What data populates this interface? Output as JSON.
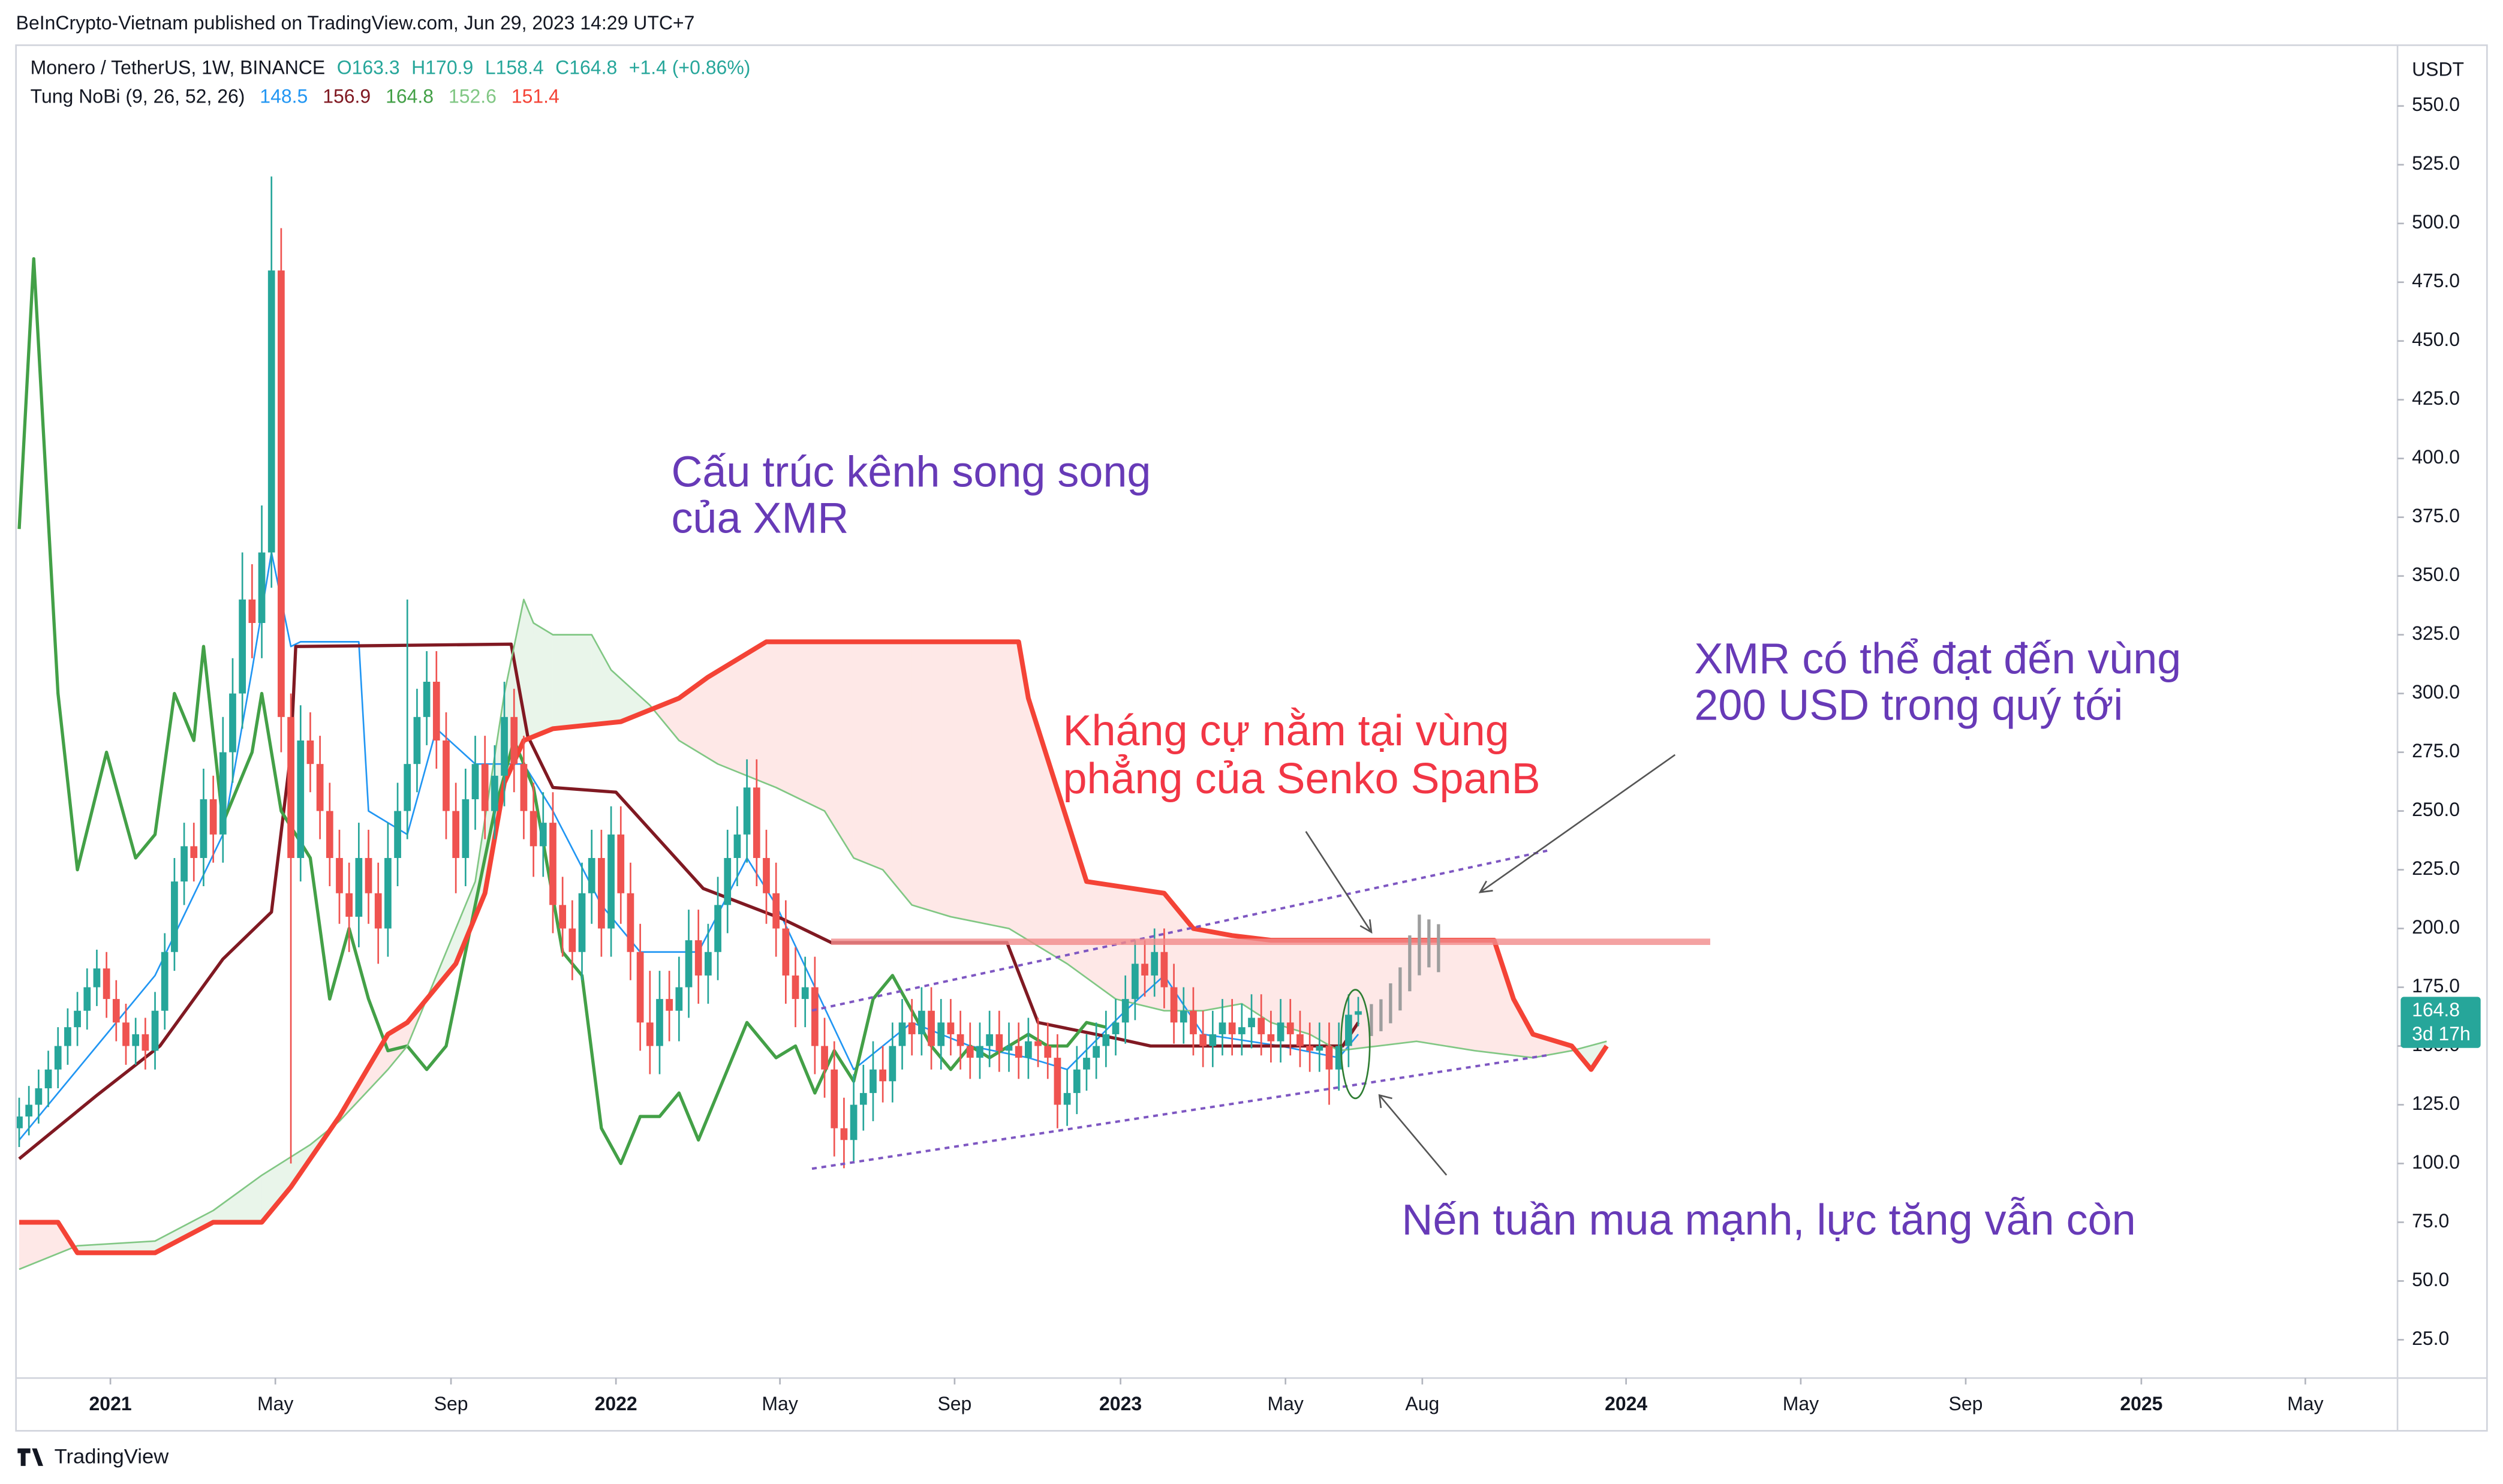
{
  "header": {
    "published": "BeInCrypto-Vietnam published on TradingView.com, Jun 29, 2023 14:29 UTC+7",
    "symbol": "Monero / TetherUS, 1W, BINANCE",
    "open": "O163.3",
    "high": "H170.9",
    "low": "L158.4",
    "close": "C164.8",
    "change": "+1.4 (+0.86%)",
    "indicator": "Tung NoBi (9, 26, 52, 26)",
    "indicator_values": [
      148.5,
      156.9,
      164.8,
      152.6,
      151.4
    ],
    "indicator_colors": [
      "#2196f3",
      "#801922",
      "#43a047",
      "#81c784",
      "#f44336"
    ],
    "footer": "TradingView"
  },
  "chart_data": {
    "type": "candlestick",
    "currency": "USDT",
    "xlim": [
      -0.33,
      245.1
    ],
    "ylim": [
      8.7,
      574.5
    ],
    "xticks": [
      {
        "value": 9.4,
        "label": "2021"
      },
      {
        "value": 26.4,
        "label": "May"
      },
      {
        "value": 44.5,
        "label": "Sep"
      },
      {
        "value": 61.5,
        "label": "2022"
      },
      {
        "value": 78.4,
        "label": "May"
      },
      {
        "value": 96.4,
        "label": "Sep"
      },
      {
        "value": 113.5,
        "label": "2023"
      },
      {
        "value": 130.5,
        "label": "May"
      },
      {
        "value": 144.6,
        "label": "Aug"
      },
      {
        "value": 165.6,
        "label": "2024"
      },
      {
        "value": 183.6,
        "label": "May"
      },
      {
        "value": 200.6,
        "label": "Sep"
      },
      {
        "value": 218.7,
        "label": "2025"
      },
      {
        "value": 235.6,
        "label": "May"
      }
    ],
    "yticks": [
      {
        "value": 25,
        "label": "25.0"
      },
      {
        "value": 50,
        "label": "50.0"
      },
      {
        "value": 75,
        "label": "75.0"
      },
      {
        "value": 100,
        "label": "100.0"
      },
      {
        "value": 125,
        "label": "125.0"
      },
      {
        "value": 150,
        "label": "150.0"
      },
      {
        "value": 175,
        "label": "175.0"
      },
      {
        "value": 200,
        "label": "200.0"
      },
      {
        "value": 225,
        "label": "225.0"
      },
      {
        "value": 250,
        "label": "250.0"
      },
      {
        "value": 275,
        "label": "275.0"
      },
      {
        "value": 300,
        "label": "300.0"
      },
      {
        "value": 325,
        "label": "325.0"
      },
      {
        "value": 350,
        "label": "350.0"
      },
      {
        "value": 375,
        "label": "375.0"
      },
      {
        "value": 400,
        "label": "400.0"
      },
      {
        "value": 425,
        "label": "425.0"
      },
      {
        "value": 450,
        "label": "450.0"
      },
      {
        "value": 475,
        "label": "475.0"
      },
      {
        "value": 500,
        "label": "500.0"
      },
      {
        "value": 525,
        "label": "525.0"
      },
      {
        "value": 550,
        "label": "550.0"
      }
    ],
    "last_price": 164.8,
    "countdown": "3d 17h",
    "last_price_color": "#26a69a",
    "up_color": "#26a69a",
    "down_color": "#ef5350",
    "open": [
      115,
      120,
      125,
      132,
      140,
      150,
      158,
      165,
      175,
      183,
      170,
      160,
      150,
      155,
      148,
      165,
      190,
      220,
      235,
      230,
      255,
      240,
      275,
      300,
      340,
      330,
      360,
      480,
      290,
      230,
      280,
      270,
      250,
      230,
      215,
      205,
      230,
      215,
      200,
      230,
      250,
      270,
      290,
      305,
      280,
      250,
      230,
      255,
      270,
      250,
      265,
      290,
      270,
      250,
      235,
      245,
      210,
      200,
      190,
      215,
      230,
      200,
      240,
      215,
      190,
      160,
      150,
      170,
      165,
      175,
      195,
      180,
      190,
      210,
      230,
      240,
      260,
      230,
      215,
      200,
      180,
      170,
      175,
      150,
      140,
      115,
      110,
      125,
      130,
      140,
      135,
      150,
      160,
      155,
      165,
      150,
      160,
      155,
      150,
      145,
      150,
      155,
      148,
      150,
      145,
      152,
      150,
      145,
      125,
      130,
      140,
      145,
      150,
      155,
      160,
      170,
      185,
      180,
      190,
      175,
      160,
      165,
      155,
      150,
      155,
      160,
      155,
      158,
      162,
      155,
      152,
      160,
      155,
      150,
      148,
      150,
      140,
      150,
      163.3
    ],
    "high": [
      128,
      133,
      140,
      148,
      158,
      166,
      173,
      183,
      191,
      190,
      178,
      168,
      162,
      162,
      173,
      198,
      230,
      245,
      245,
      268,
      265,
      290,
      315,
      360,
      355,
      380,
      520,
      498,
      300,
      295,
      292,
      282,
      262,
      242,
      228,
      245,
      242,
      228,
      245,
      262,
      340,
      302,
      318,
      318,
      292,
      262,
      268,
      282,
      282,
      278,
      305,
      302,
      282,
      262,
      258,
      258,
      222,
      212,
      228,
      242,
      242,
      252,
      252,
      228,
      202,
      182,
      182,
      182,
      188,
      208,
      208,
      202,
      222,
      242,
      252,
      272,
      272,
      242,
      228,
      212,
      192,
      188,
      188,
      162,
      152,
      128,
      138,
      142,
      152,
      150,
      160,
      170,
      170,
      175,
      175,
      170,
      170,
      165,
      160,
      160,
      165,
      165,
      160,
      160,
      162,
      162,
      160,
      155,
      140,
      150,
      155,
      160,
      165,
      170,
      180,
      195,
      195,
      200,
      200,
      185,
      175,
      175,
      165,
      165,
      170,
      170,
      168,
      172,
      172,
      165,
      170,
      170,
      165,
      160,
      160,
      160,
      160,
      172,
      170.9
    ],
    "low": [
      107,
      112,
      117,
      124,
      132,
      142,
      150,
      157,
      167,
      162,
      152,
      142,
      142,
      140,
      140,
      157,
      182,
      210,
      220,
      218,
      228,
      228,
      262,
      285,
      315,
      315,
      345,
      275,
      100,
      220,
      258,
      238,
      218,
      202,
      190,
      192,
      202,
      185,
      188,
      218,
      238,
      258,
      278,
      268,
      238,
      215,
      218,
      242,
      238,
      238,
      252,
      258,
      238,
      222,
      222,
      198,
      188,
      178,
      178,
      202,
      188,
      188,
      202,
      178,
      148,
      138,
      138,
      152,
      152,
      162,
      168,
      168,
      178,
      198,
      218,
      228,
      218,
      202,
      188,
      168,
      158,
      158,
      138,
      128,
      103,
      98,
      100,
      114,
      118,
      126,
      126,
      140,
      146,
      146,
      140,
      140,
      146,
      140,
      136,
      136,
      141,
      139,
      139,
      136,
      136,
      141,
      136,
      115,
      116,
      121,
      131,
      136,
      141,
      146,
      151,
      161,
      171,
      171,
      166,
      151,
      151,
      146,
      141,
      141,
      146,
      146,
      146,
      149,
      146,
      143,
      143,
      146,
      141,
      139,
      139,
      125,
      131,
      141,
      158.4
    ],
    "close": [
      120,
      125,
      132,
      140,
      150,
      158,
      165,
      175,
      183,
      170,
      160,
      150,
      155,
      148,
      165,
      190,
      220,
      235,
      230,
      255,
      240,
      275,
      300,
      340,
      330,
      360,
      480,
      290,
      230,
      280,
      270,
      250,
      230,
      215,
      205,
      230,
      215,
      200,
      230,
      250,
      270,
      290,
      305,
      280,
      250,
      230,
      255,
      270,
      250,
      265,
      290,
      270,
      250,
      235,
      245,
      210,
      200,
      190,
      215,
      230,
      200,
      240,
      215,
      190,
      160,
      150,
      170,
      165,
      175,
      195,
      180,
      190,
      210,
      230,
      240,
      260,
      230,
      215,
      200,
      180,
      170,
      175,
      150,
      140,
      115,
      110,
      125,
      130,
      140,
      135,
      150,
      160,
      155,
      165,
      150,
      160,
      155,
      150,
      145,
      150,
      155,
      148,
      150,
      145,
      152,
      150,
      145,
      125,
      130,
      140,
      145,
      150,
      155,
      160,
      170,
      185,
      180,
      190,
      175,
      160,
      165,
      155,
      150,
      155,
      160,
      155,
      158,
      162,
      155,
      152,
      160,
      155,
      150,
      148,
      150,
      140,
      150,
      163.3,
      164.8
    ],
    "lines": [
      {
        "color": "#2196f3",
        "width": 1,
        "x": [
          0,
          8,
          14,
          21,
          24,
          26,
          28,
          29,
          35,
          36,
          40,
          43,
          47,
          52,
          55,
          60,
          64,
          70,
          75,
          78,
          82,
          86,
          92,
          98,
          104,
          108,
          114,
          118,
          122,
          130,
          136,
          138
        ],
        "values": [
          110,
          150,
          180,
          240,
          310,
          360,
          320,
          322,
          322,
          250,
          240,
          285,
          270,
          270,
          250,
          210,
          190,
          190,
          230,
          210,
          175,
          140,
          160,
          150,
          145,
          140,
          165,
          180,
          155,
          150,
          145,
          155
        ]
      },
      {
        "color": "#801922",
        "width": 2,
        "x": [
          0,
          8,
          14.5,
          21,
          26,
          28,
          28.5,
          50.7,
          52.4,
          55,
          61.5,
          70.5,
          78.7,
          83.7,
          101.8,
          105,
          113.3,
          116.6,
          136.4,
          138
        ],
        "values": [
          102,
          129,
          150,
          187,
          207,
          275,
          320,
          321,
          282,
          260,
          258,
          217,
          204,
          194,
          194,
          160,
          153,
          150,
          150,
          160
        ]
      },
      {
        "color": "#43a047",
        "width": 2,
        "x": [
          0,
          1.5,
          4,
          6,
          9,
          11,
          12,
          14,
          16,
          18,
          19,
          21,
          24,
          25,
          27,
          30,
          32,
          34,
          36,
          38,
          40,
          42,
          44,
          47,
          49,
          51,
          53,
          56,
          58,
          60,
          62,
          64,
          66,
          68,
          70,
          73,
          75,
          78,
          80,
          82,
          84,
          86,
          88,
          90,
          92,
          94,
          96,
          98,
          100,
          104,
          106,
          108,
          110,
          112
        ],
        "values": [
          370,
          485,
          300,
          225,
          275,
          245,
          230,
          240,
          300,
          280,
          320,
          245,
          275,
          300,
          250,
          230,
          170,
          200,
          170,
          148,
          150,
          140,
          150,
          210,
          250,
          280,
          260,
          190,
          180,
          115,
          100,
          120,
          120,
          130,
          110,
          140,
          160,
          145,
          150,
          130,
          148,
          135,
          170,
          180,
          165,
          150,
          140,
          150,
          145,
          155,
          150,
          150,
          160,
          158
        ]
      },
      {
        "color": "#81c784",
        "width": 1,
        "x": [
          0,
          6,
          14,
          20,
          25,
          30,
          33,
          38,
          40,
          42,
          44,
          47,
          50,
          52,
          53,
          55,
          59,
          61,
          65,
          68,
          72,
          78,
          83,
          86,
          89,
          92,
          96,
          102,
          108,
          113,
          118,
          122,
          126,
          129,
          133,
          136,
          140,
          144,
          150,
          156,
          160,
          163.6
        ],
        "values": [
          55,
          65,
          67,
          80,
          95,
          108,
          118,
          140,
          150,
          170,
          190,
          220,
          300,
          340,
          330,
          325,
          325,
          310,
          295,
          280,
          270,
          260,
          250,
          230,
          225,
          210,
          205,
          200,
          185,
          170,
          165,
          165,
          168,
          160,
          155,
          148,
          150,
          152,
          148,
          145,
          148,
          152
        ]
      },
      {
        "color": "#f44336",
        "width": 3,
        "x": [
          0,
          4,
          6,
          14,
          20,
          25,
          28,
          33,
          38,
          40,
          45,
          48,
          50,
          52,
          55,
          62,
          68,
          71,
          77,
          103,
          104,
          110,
          118,
          121,
          125,
          129,
          152,
          154,
          156,
          160,
          162,
          163.6
        ],
        "values": [
          75,
          75,
          62,
          62,
          75,
          75,
          90,
          120,
          155,
          160,
          185,
          215,
          262,
          280,
          285,
          288,
          298,
          307,
          322,
          322,
          298,
          220,
          215,
          200,
          197,
          195,
          195,
          170,
          155,
          150,
          140,
          150
        ]
      }
    ],
    "cloud": {
      "between": [
        3,
        4
      ],
      "up_color": "rgba(76,175,80,0.12)",
      "down_color": "rgba(244,67,54,0.12)"
    },
    "annotations": [
      "Cấu trúc kênh song song",
      "của XMR",
      "Kháng cự nằm tại vùng",
      "phẳng của Senko SpanB",
      "XMR có thể đạt đến vùng",
      "200 USD trong quý tới",
      "Nến tuần mua mạnh, lực tăng vẫn còn"
    ]
  }
}
